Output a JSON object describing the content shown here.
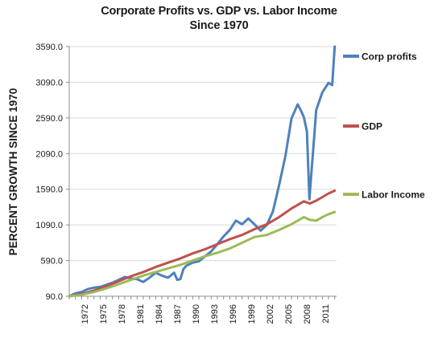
{
  "chart_data": {
    "type": "line",
    "title_line1": "Corporate Profits vs. GDP vs. Labor Income",
    "title_line2": "Since 1970",
    "ylabel": "PERCENT GROWTH SINCE 1970",
    "xlabel": "",
    "ylim": [
      90,
      3590
    ],
    "y_ticks": [
      "3590.0",
      "3090.0",
      "2590.0",
      "2090.0",
      "1590.0",
      "1090.0",
      "590.0",
      "90.0"
    ],
    "x_ticks": [
      "1972",
      "1975",
      "1978",
      "1981",
      "1984",
      "1987",
      "1990",
      "1993",
      "1996",
      "1999",
      "2002",
      "2005",
      "2008",
      "2011"
    ],
    "xlim": [
      1970,
      2013.3
    ],
    "grid": "horizontal",
    "legend_placement": "right",
    "series": [
      {
        "name": "Corp profits",
        "color": "#4f81bd",
        "points": [
          [
            1970,
            90
          ],
          [
            1971,
            130
          ],
          [
            1972,
            150
          ],
          [
            1973,
            190
          ],
          [
            1974,
            210
          ],
          [
            1975,
            220
          ],
          [
            1976,
            250
          ],
          [
            1977,
            280
          ],
          [
            1978,
            320
          ],
          [
            1979,
            360
          ],
          [
            1980,
            340
          ],
          [
            1981,
            330
          ],
          [
            1982,
            290
          ],
          [
            1983,
            350
          ],
          [
            1984,
            420
          ],
          [
            1985,
            380
          ],
          [
            1986,
            350
          ],
          [
            1987,
            420
          ],
          [
            1987.5,
            320
          ],
          [
            1988,
            330
          ],
          [
            1988.5,
            470
          ],
          [
            1989,
            520
          ],
          [
            1990,
            560
          ],
          [
            1991,
            580
          ],
          [
            1992,
            650
          ],
          [
            1993,
            720
          ],
          [
            1994,
            820
          ],
          [
            1995,
            930
          ],
          [
            1996,
            1020
          ],
          [
            1997,
            1150
          ],
          [
            1998,
            1100
          ],
          [
            1999,
            1180
          ],
          [
            2000,
            1100
          ],
          [
            2001,
            1010
          ],
          [
            2002,
            1090
          ],
          [
            2003,
            1280
          ],
          [
            2004,
            1650
          ],
          [
            2005,
            2050
          ],
          [
            2006,
            2580
          ],
          [
            2007,
            2780
          ],
          [
            2007.5,
            2700
          ],
          [
            2008,
            2600
          ],
          [
            2008.5,
            2400
          ],
          [
            2008.9,
            1450
          ],
          [
            2009.3,
            1900
          ],
          [
            2009.7,
            2350
          ],
          [
            2010,
            2700
          ],
          [
            2011,
            2950
          ],
          [
            2012,
            3080
          ],
          [
            2012.6,
            3050
          ],
          [
            2013,
            3590
          ]
        ]
      },
      {
        "name": "GDP",
        "color": "#c0504d",
        "points": [
          [
            1970,
            90
          ],
          [
            1972,
            120
          ],
          [
            1974,
            170
          ],
          [
            1976,
            230
          ],
          [
            1978,
            300
          ],
          [
            1980,
            370
          ],
          [
            1982,
            430
          ],
          [
            1984,
            500
          ],
          [
            1986,
            560
          ],
          [
            1988,
            620
          ],
          [
            1990,
            690
          ],
          [
            1992,
            750
          ],
          [
            1994,
            820
          ],
          [
            1996,
            890
          ],
          [
            1998,
            950
          ],
          [
            2000,
            1030
          ],
          [
            2002,
            1100
          ],
          [
            2004,
            1200
          ],
          [
            2006,
            1320
          ],
          [
            2008,
            1420
          ],
          [
            2009,
            1390
          ],
          [
            2010,
            1430
          ],
          [
            2011,
            1480
          ],
          [
            2012,
            1530
          ],
          [
            2013,
            1570
          ]
        ]
      },
      {
        "name": "Labor Income",
        "color": "#9bbb59",
        "points": [
          [
            1970,
            90
          ],
          [
            1972,
            110
          ],
          [
            1974,
            150
          ],
          [
            1976,
            200
          ],
          [
            1978,
            260
          ],
          [
            1980,
            320
          ],
          [
            1982,
            380
          ],
          [
            1984,
            430
          ],
          [
            1986,
            480
          ],
          [
            1988,
            530
          ],
          [
            1990,
            590
          ],
          [
            1992,
            650
          ],
          [
            1994,
            700
          ],
          [
            1996,
            760
          ],
          [
            1998,
            840
          ],
          [
            2000,
            920
          ],
          [
            2002,
            950
          ],
          [
            2004,
            1020
          ],
          [
            2006,
            1100
          ],
          [
            2008,
            1200
          ],
          [
            2009,
            1160
          ],
          [
            2010,
            1150
          ],
          [
            2011,
            1200
          ],
          [
            2012,
            1240
          ],
          [
            2013,
            1270
          ]
        ]
      }
    ]
  }
}
